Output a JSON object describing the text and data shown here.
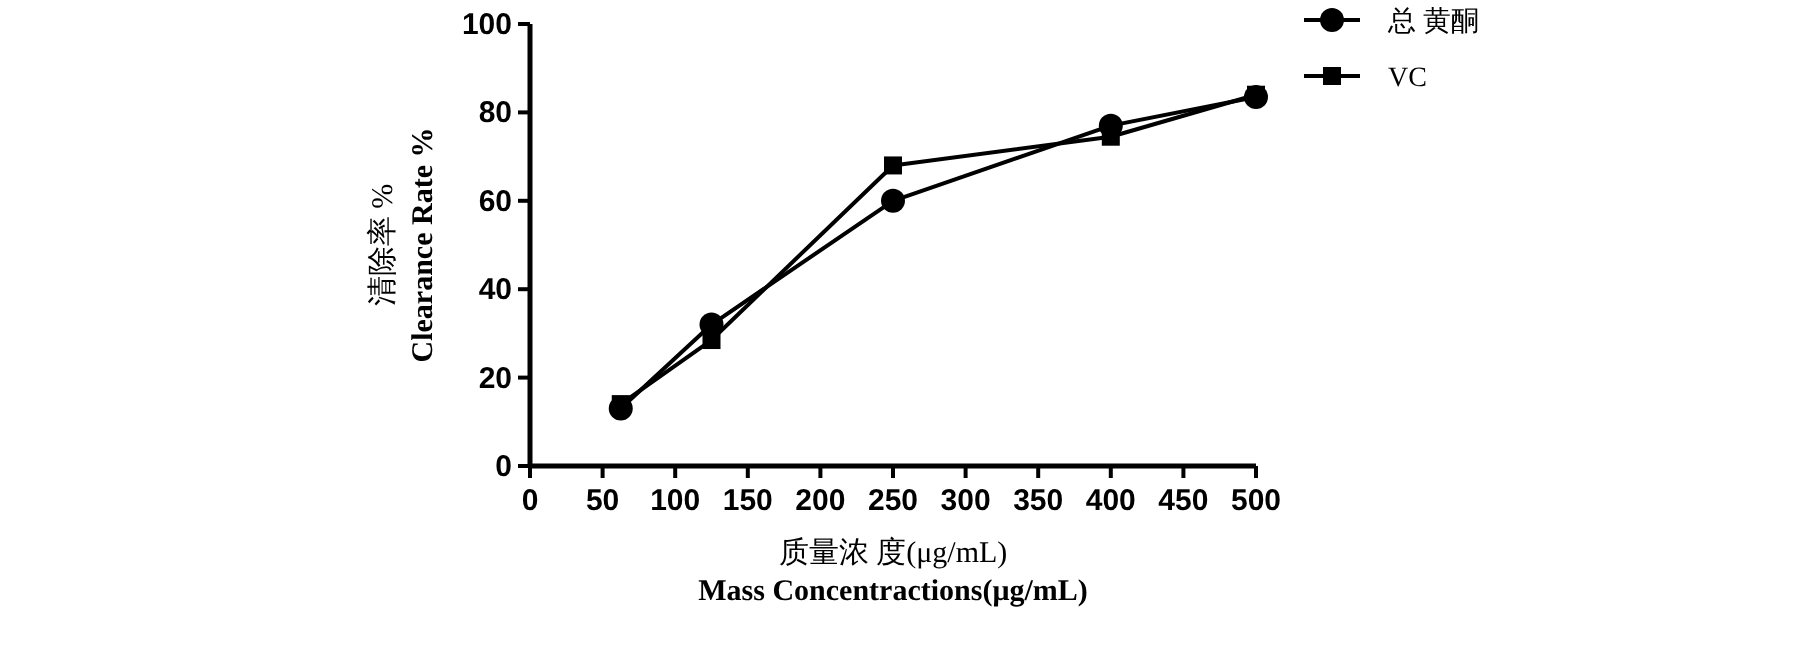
{
  "chart_data": {
    "type": "line",
    "xlabel": "质量浓 度(μg/mL)\nMass Concentractions(μg/mL)",
    "ylabel": "清除率  %\nClearance Rate %",
    "x": [
      62.5,
      125,
      250,
      400,
      500
    ],
    "series": [
      {
        "name": "总 黄酮",
        "color": "#000000",
        "marker": "circle",
        "values": [
          13,
          32,
          60,
          77,
          83.5
        ]
      },
      {
        "name": "VC",
        "color": "#000000",
        "marker": "square",
        "values": [
          14,
          28.5,
          68,
          74.5,
          84
        ]
      }
    ],
    "xlim": [
      0,
      500
    ],
    "xticks": [
      0,
      50,
      100,
      150,
      200,
      250,
      300,
      350,
      400,
      450,
      500
    ],
    "ylim": [
      0,
      100
    ],
    "yticks": [
      0,
      20,
      40,
      60,
      80,
      100
    ],
    "grid": false,
    "legend": "top right",
    "line_style": "solid"
  }
}
